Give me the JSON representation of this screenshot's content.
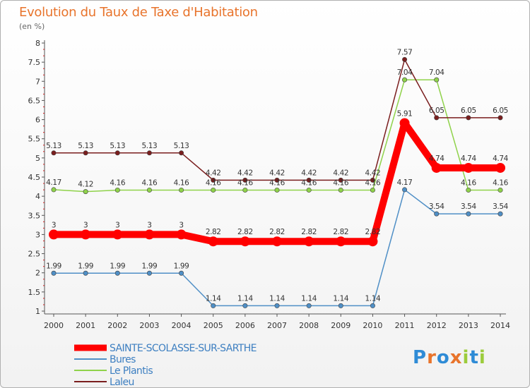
{
  "header": {
    "title": "Evolution du Taux de Taxe d'Habitation",
    "unit": "(en %)"
  },
  "logo": {
    "text": "Proxiti",
    "colors": [
      "#2e8bd6",
      "#e8742c",
      "#2e8bd6",
      "#e8742c",
      "#9ccc3c",
      "#2e8bd6",
      "#9ccc3c"
    ]
  },
  "chart_data": {
    "type": "line",
    "title": "Evolution du Taux de Taxe d'Habitation",
    "ylabel": "(en %)",
    "xlabel": "",
    "x": [
      "2000",
      "2001",
      "2002",
      "2003",
      "2004",
      "2005",
      "2006",
      "2007",
      "2008",
      "2009",
      "2010",
      "2011",
      "2012",
      "2013",
      "2014"
    ],
    "yticks": [
      "1",
      "1.5",
      "2",
      "2.5",
      "3",
      "3.5",
      "4",
      "4.5",
      "5",
      "5.5",
      "6",
      "6.5",
      "7",
      "7.5",
      "8"
    ],
    "ylim": [
      1,
      8
    ],
    "grid": false,
    "legend_position": "bottom-left",
    "series": [
      {
        "name": "SAINTE-SCOLASSE-SUR-SARTHE",
        "color": "#ff0000",
        "emphasis": true,
        "values": [
          3,
          3,
          3,
          3,
          3,
          2.82,
          2.82,
          2.82,
          2.82,
          2.82,
          2.82,
          5.91,
          4.74,
          4.74,
          4.74
        ],
        "labels": [
          "3",
          "3",
          "3",
          "3",
          "3",
          "2.82",
          "2.82",
          "2.82",
          "2.82",
          "2.82",
          "2.82",
          "5.91",
          "4.74",
          "4.74",
          "4.74"
        ]
      },
      {
        "name": "Bures",
        "color": "#4f8fc6",
        "emphasis": false,
        "values": [
          1.99,
          1.99,
          1.99,
          1.99,
          1.99,
          1.14,
          1.14,
          1.14,
          1.14,
          1.14,
          1.14,
          4.17,
          3.54,
          3.54,
          3.54
        ],
        "labels": [
          "1.99",
          "1.99",
          "1.99",
          "1.99",
          "1.99",
          "1.14",
          "1.14",
          "1.14",
          "1.14",
          "1.14",
          "1.14",
          "4.17",
          "3.54",
          "3.54",
          "3.54"
        ]
      },
      {
        "name": "Le Plantis",
        "color": "#8fd24a",
        "emphasis": false,
        "values": [
          4.17,
          4.12,
          4.16,
          4.16,
          4.16,
          4.16,
          4.16,
          4.16,
          4.16,
          4.16,
          4.16,
          7.04,
          7.04,
          4.16,
          4.16
        ],
        "labels": [
          "4.17",
          "4.12",
          "4.16",
          "4.16",
          "4.16",
          "4.16",
          "4.16",
          "4.16",
          "4.16",
          "4.16",
          "4.16",
          "7.04",
          "7.04",
          "4.16",
          "4.16"
        ]
      },
      {
        "name": "Laleu",
        "color": "#7a1e1e",
        "emphasis": false,
        "values": [
          5.13,
          5.13,
          5.13,
          5.13,
          5.13,
          4.42,
          4.42,
          4.42,
          4.42,
          4.42,
          4.42,
          7.57,
          6.05,
          6.05,
          6.05
        ],
        "labels": [
          "5.13",
          "5.13",
          "5.13",
          "5.13",
          "5.13",
          "4.42",
          "4.42",
          "4.42",
          "4.42",
          "4.42",
          "4.42",
          "7.57",
          "6.05",
          "6.05",
          "6.05"
        ]
      }
    ]
  }
}
